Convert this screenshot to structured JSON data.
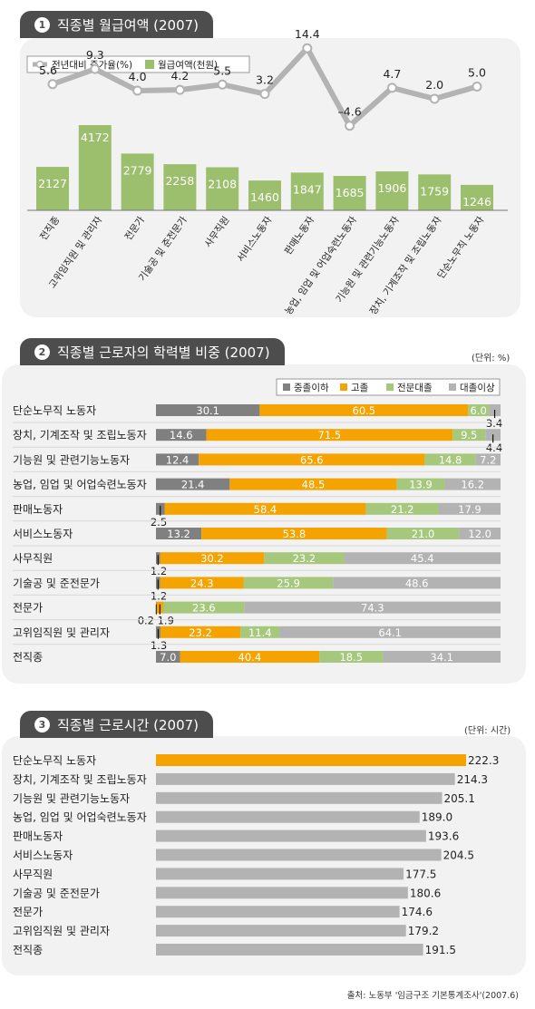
{
  "sections": [
    {
      "num": "1",
      "title": "직종별 월급여액 (2007)"
    },
    {
      "num": "2",
      "title": "직종별 근로자의 학력별 비중 (2007)",
      "unit": "(단위: %)"
    },
    {
      "num": "3",
      "title": "직종별 근로시간 (2007)",
      "unit": "(단위: 시간)"
    }
  ],
  "source": "출처: 노동부 '임금구조 기본통계조사'(2007.6)",
  "colors": {
    "bar_green": "#9cbf6e",
    "line_gray": "#b3b3b3",
    "edu_c1": "#808080",
    "edu_c2": "#f5a300",
    "edu_c3": "#a6c87c",
    "edu_c4": "#b3b3b3",
    "hours_bar": "#b3b3b3",
    "hours_highlight": "#f5a300"
  },
  "chart_data": [
    {
      "type": "bar",
      "legend": {
        "line": "전년대비 증가율(%)",
        "bar": "월급여액(천원)"
      },
      "categories": [
        "전직종",
        "고위임직원 및 관리자",
        "전문가",
        "기술공 및 준전문가",
        "사무직원",
        "서비스노동자",
        "판매노동자",
        "농업, 임업 및 어업숙련노동자",
        "기능원 및 관련기능노동자",
        "장치, 기계조작 및 조립노동자",
        "단순노무직 노동자"
      ],
      "series": [
        {
          "name": "월급여액(천원)",
          "type": "bar",
          "values": [
            2127,
            4172,
            2779,
            2258,
            2108,
            1460,
            1847,
            1685,
            1906,
            1759,
            1246
          ]
        },
        {
          "name": "전년대비 증가율(%)",
          "type": "line",
          "values": [
            5.6,
            9.3,
            4.0,
            4.2,
            5.5,
            3.2,
            14.4,
            -4.6,
            4.7,
            2.0,
            5.0
          ],
          "labels": [
            "5.6",
            "9.3",
            "4.0",
            "4.2",
            "5.5",
            "3.2",
            "14.4",
            "–4.6",
            "4.7",
            "2.0",
            "5.0"
          ]
        }
      ]
    },
    {
      "type": "bar",
      "stacked": true,
      "orientation": "horizontal",
      "legend": [
        "중졸이하",
        "고졸",
        "전문대졸",
        "대졸이상"
      ],
      "categories": [
        "단순노무직 노동자",
        "장치, 기계조작 및 조립노동자",
        "기능원 및 관련기능노동자",
        "농업, 임업 및 어업숙련노동자",
        "판매노동자",
        "서비스노동자",
        "사무직원",
        "기술공 및 준전문가",
        "전문가",
        "고위임직원 및 관리자",
        "전직종"
      ],
      "series": [
        {
          "name": "중졸이하",
          "values": [
            30.1,
            14.6,
            12.4,
            21.4,
            2.5,
            13.2,
            1.2,
            1.2,
            0.2,
            1.3,
            7.0
          ],
          "labels": [
            "30.1",
            "14.6",
            "12.4",
            "21.4",
            "2.5",
            "13.2",
            "1.2",
            "1.2",
            "0.2",
            "1.3",
            "7.0"
          ]
        },
        {
          "name": "고졸",
          "values": [
            60.5,
            71.5,
            65.6,
            48.5,
            58.4,
            53.8,
            30.2,
            24.3,
            1.9,
            23.2,
            40.4
          ],
          "labels": [
            "60.5",
            "71.5",
            "65.6",
            "48.5",
            "58.4",
            "53.8",
            "30.2",
            "24.3",
            "1.9",
            "23.2",
            "40.4"
          ]
        },
        {
          "name": "전문대졸",
          "values": [
            6.0,
            9.5,
            14.8,
            13.9,
            21.2,
            21.0,
            23.2,
            25.9,
            23.6,
            11.4,
            18.5
          ],
          "labels": [
            "6.0",
            "9.5",
            "14.8",
            "13.9",
            "21.2",
            "21.0",
            "23.2",
            "25.9",
            "23.6",
            "11.4",
            "18.5"
          ]
        },
        {
          "name": "대졸이상",
          "values": [
            3.4,
            4.4,
            7.2,
            16.2,
            17.9,
            12.0,
            45.4,
            48.6,
            74.3,
            64.1,
            34.1
          ],
          "labels": [
            "3.4",
            "4.4",
            "7.2",
            "16.2",
            "17.9",
            "12.0",
            "45.4",
            "48.6",
            "74.3",
            "64.1",
            "34.1"
          ]
        }
      ],
      "xlim": [
        0,
        100
      ]
    },
    {
      "type": "bar",
      "orientation": "horizontal",
      "categories": [
        "단순노무직 노동자",
        "장치, 기계조작 및 조립노동자",
        "기능원 및 관련기능노동자",
        "농업, 임업 및 어업숙련노동자",
        "판매노동자",
        "서비스노동자",
        "사무직원",
        "기술공 및 준전문가",
        "전문가",
        "고위임직원 및 관리자",
        "전직종"
      ],
      "values": [
        222.3,
        214.3,
        205.1,
        189.0,
        193.6,
        204.5,
        177.5,
        180.6,
        174.6,
        179.2,
        191.5
      ],
      "labels": [
        "222.3",
        "214.3",
        "205.1",
        "189.0",
        "193.6",
        "204.5",
        "177.5",
        "180.6",
        "174.6",
        "179.2",
        "191.5"
      ],
      "xlim": [
        0,
        222.3
      ]
    }
  ]
}
